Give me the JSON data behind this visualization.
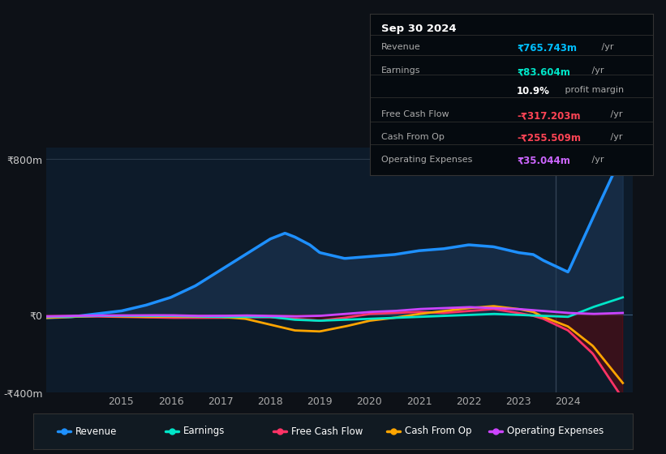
{
  "bg_color": "#0d1117",
  "plot_bg_color": "#0d1b2a",
  "ylim": [
    -400,
    860
  ],
  "yticks": [
    -400,
    0,
    800
  ],
  "ytick_labels": [
    "-₹400m",
    "₹0",
    "₹800m"
  ],
  "xlim": [
    2013.5,
    2025.3
  ],
  "xticks": [
    2015,
    2016,
    2017,
    2018,
    2019,
    2020,
    2021,
    2022,
    2023,
    2024
  ],
  "series": {
    "revenue": {
      "color": "#1e90ff",
      "fill_color": "#1e3a5a",
      "x": [
        2013.5,
        2014,
        2014.5,
        2015,
        2015.5,
        2016,
        2016.5,
        2017,
        2017.5,
        2018,
        2018.3,
        2018.5,
        2018.8,
        2019,
        2019.5,
        2020,
        2020.5,
        2021,
        2021.5,
        2022,
        2022.5,
        2023,
        2023.3,
        2023.5,
        2024,
        2024.5,
        2025.1
      ],
      "y": [
        -15,
        -10,
        5,
        20,
        50,
        90,
        150,
        230,
        310,
        390,
        420,
        400,
        360,
        320,
        290,
        300,
        310,
        330,
        340,
        360,
        350,
        320,
        310,
        280,
        220,
        500,
        830
      ]
    },
    "earnings": {
      "color": "#00e5c8",
      "x": [
        2013.5,
        2014,
        2014.5,
        2015,
        2015.5,
        2016,
        2016.5,
        2017,
        2017.5,
        2018,
        2018.5,
        2019,
        2019.5,
        2020,
        2020.5,
        2021,
        2021.5,
        2022,
        2022.5,
        2023,
        2023.5,
        2024,
        2024.5,
        2025.1
      ],
      "y": [
        -10,
        -8,
        -5,
        -5,
        -5,
        -5,
        -8,
        -10,
        -10,
        -10,
        -25,
        -30,
        -25,
        -20,
        -15,
        -10,
        -5,
        0,
        5,
        0,
        -5,
        -10,
        40,
        90
      ]
    },
    "free_cash_flow": {
      "color": "#ff3366",
      "x": [
        2013.5,
        2014,
        2014.5,
        2015,
        2015.5,
        2016,
        2016.5,
        2017,
        2017.5,
        2018,
        2018.5,
        2019,
        2019.5,
        2020,
        2020.5,
        2021,
        2021.5,
        2022,
        2022.5,
        2023,
        2023.3,
        2023.5,
        2024,
        2024.5,
        2025.1
      ],
      "y": [
        -10,
        -8,
        -8,
        -10,
        -12,
        -15,
        -15,
        -15,
        -12,
        -12,
        -20,
        -30,
        -15,
        5,
        10,
        15,
        10,
        20,
        30,
        10,
        -5,
        -20,
        -80,
        -200,
        -430
      ]
    },
    "cash_from_op": {
      "color": "#ffa500",
      "x": [
        2013.5,
        2014,
        2014.5,
        2015,
        2015.5,
        2016,
        2016.5,
        2017,
        2017.5,
        2018,
        2018.5,
        2019,
        2019.5,
        2020,
        2020.5,
        2021,
        2021.5,
        2022,
        2022.5,
        2023,
        2023.3,
        2023.5,
        2024,
        2024.5,
        2025.1
      ],
      "y": [
        -15,
        -10,
        -5,
        -8,
        -10,
        -8,
        -10,
        -10,
        -20,
        -50,
        -80,
        -85,
        -60,
        -30,
        -15,
        5,
        20,
        35,
        45,
        30,
        15,
        -10,
        -60,
        -160,
        -350
      ]
    },
    "operating_expenses": {
      "color": "#cc44ff",
      "x": [
        2013.5,
        2014,
        2014.5,
        2015,
        2015.5,
        2016,
        2016.5,
        2017,
        2017.5,
        2018,
        2018.5,
        2019,
        2019.5,
        2020,
        2020.5,
        2021,
        2021.5,
        2022,
        2022.5,
        2023,
        2023.5,
        2024,
        2024.5,
        2025.1
      ],
      "y": [
        -8,
        -5,
        -3,
        -3,
        -2,
        -2,
        -5,
        -5,
        -3,
        -5,
        -8,
        -5,
        5,
        15,
        20,
        30,
        35,
        40,
        35,
        30,
        20,
        10,
        5,
        10
      ]
    }
  },
  "legend": [
    {
      "label": "Revenue",
      "color": "#1e90ff"
    },
    {
      "label": "Earnings",
      "color": "#00e5c8"
    },
    {
      "label": "Free Cash Flow",
      "color": "#ff3366"
    },
    {
      "label": "Cash From Op",
      "color": "#ffa500"
    },
    {
      "label": "Operating Expenses",
      "color": "#cc44ff"
    }
  ],
  "infobox": {
    "date": "Sep 30 2024",
    "rows": [
      {
        "label": "Revenue",
        "value": "₹765.743m",
        "suffix": " /yr",
        "value_color": "#00bfff",
        "sep_below": true
      },
      {
        "label": "Earnings",
        "value": "₹83.604m",
        "suffix": " /yr",
        "value_color": "#00e5c8",
        "sep_below": false
      },
      {
        "label": "",
        "value": "10.9%",
        "suffix": " profit margin",
        "value_color": "#ffffff",
        "sep_below": true
      },
      {
        "label": "Free Cash Flow",
        "value": "-₹317.203m",
        "suffix": " /yr",
        "value_color": "#ff4455",
        "sep_below": true
      },
      {
        "label": "Cash From Op",
        "value": "-₹255.509m",
        "suffix": " /yr",
        "value_color": "#ff4455",
        "sep_below": true
      },
      {
        "label": "Operating Expenses",
        "value": "₹35.044m",
        "suffix": " /yr",
        "value_color": "#cc66ff",
        "sep_below": false
      }
    ]
  }
}
